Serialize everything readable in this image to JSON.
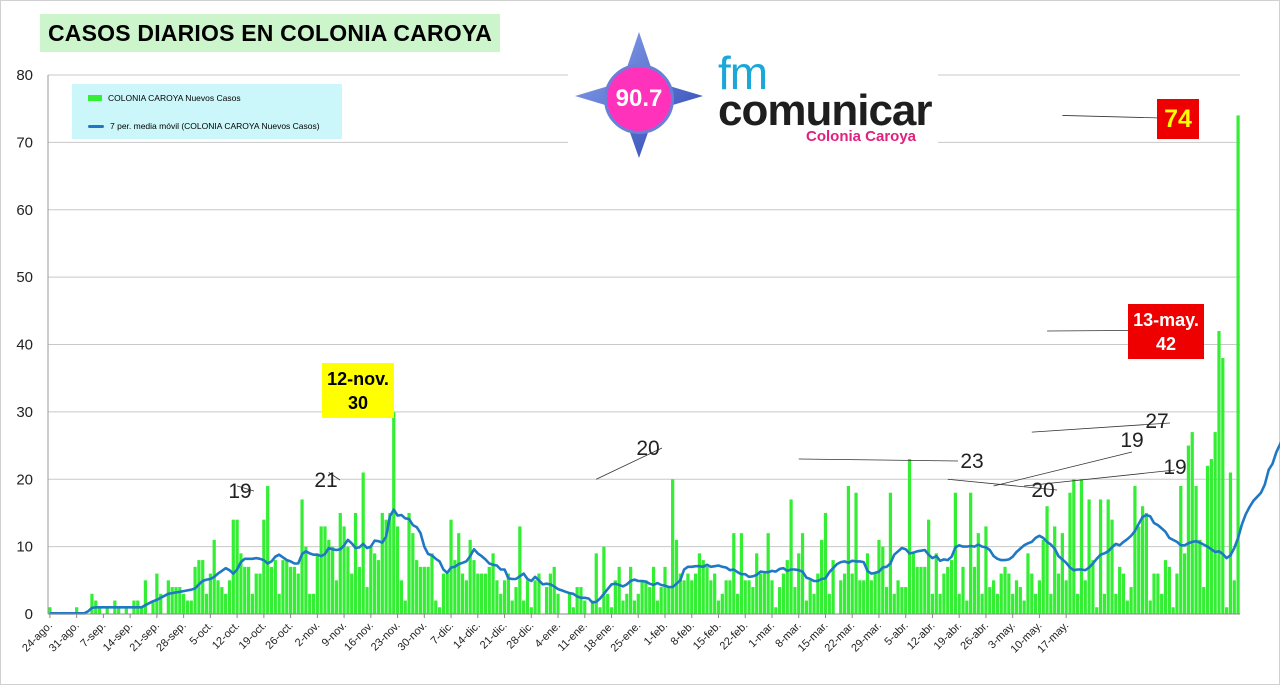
{
  "title": "CASOS DIARIOS EN COLONIA CAROYA",
  "logo": {
    "frequency": "90.7",
    "brand_prefix": "fm",
    "brand_name": "comunicar",
    "city": "Colonia Caroya",
    "icon": "compass-star-icon"
  },
  "legend": {
    "items": [
      {
        "label": "COLONIA CAROYA Nuevos Casos",
        "kind": "bar",
        "color": "#33ee33"
      },
      {
        "label": "7 per. media móvil (COLONIA CAROYA Nuevos Casos)",
        "kind": "line",
        "color": "#1f78c4"
      }
    ]
  },
  "colors": {
    "bars": "#33ee33",
    "moving_average": "#1f78c4",
    "grid": "#c8c8c8",
    "highlight_yellow": "#ffff00",
    "highlight_red": "#ee0000"
  },
  "callouts": {
    "nov": {
      "line1": "12-nov.",
      "line2": "30"
    },
    "may": {
      "line1": "13-may.",
      "line2": "42"
    },
    "max": {
      "value": "74"
    }
  },
  "chart_data": {
    "type": "bar",
    "title": "CASOS DIARIOS EN COLONIA CAROYA",
    "xlabel": "",
    "ylabel": "",
    "ylim": [
      0,
      80
    ],
    "yticks": [
      0,
      10,
      20,
      30,
      40,
      50,
      60,
      70,
      80
    ],
    "grid": true,
    "legend_position": "top-left",
    "x_start": "24-ago.",
    "x_tick_labels": [
      "24-ago.",
      "31-ago.",
      "7-sep.",
      "14-sep.",
      "21-sep.",
      "28-sep.",
      "5-oct.",
      "12-oct.",
      "19-oct.",
      "26-oct.",
      "2-nov.",
      "9-nov.",
      "16-nov.",
      "23-nov.",
      "30-nov.",
      "7-dic.",
      "14-dic.",
      "21-dic.",
      "28-dic.",
      "4-ene.",
      "11-ene.",
      "18-ene.",
      "25-ene.",
      "1-feb.",
      "8-feb.",
      "15-feb.",
      "22-feb.",
      "1-mar.",
      "8-mar.",
      "15-mar.",
      "22-mar.",
      "29-mar.",
      "5-abr.",
      "12-abr.",
      "19-abr.",
      "26-abr.",
      "3-may.",
      "10-may.",
      "17-may."
    ],
    "series": [
      {
        "name": "COLONIA CAROYA Nuevos Casos",
        "type": "bar",
        "values": [
          1,
          0,
          0,
          0,
          0,
          0,
          0,
          1,
          0,
          0,
          0,
          3,
          2,
          1,
          0,
          1,
          0,
          2,
          1,
          0,
          1,
          0,
          2,
          2,
          1,
          5,
          0,
          2,
          6,
          3,
          0,
          5,
          4,
          4,
          4,
          3,
          2,
          2,
          7,
          8,
          8,
          3,
          6,
          11,
          5,
          4,
          3,
          5,
          14,
          14,
          9,
          7,
          7,
          3,
          6,
          6,
          14,
          19,
          7,
          8,
          3,
          8,
          8,
          7,
          7,
          6,
          17,
          10,
          3,
          3,
          9,
          13,
          13,
          11,
          10,
          5,
          15,
          13,
          10,
          6,
          15,
          7,
          21,
          4,
          10,
          9,
          8,
          15,
          14,
          15,
          30,
          13,
          5,
          2,
          15,
          12,
          8,
          7,
          7,
          7,
          9,
          2,
          1,
          6,
          6,
          14,
          8,
          12,
          6,
          5,
          11,
          8,
          6,
          6,
          6,
          7,
          9,
          5,
          3,
          5,
          6,
          2,
          4,
          13,
          2,
          5,
          1,
          5,
          6,
          0,
          4,
          6,
          7,
          3,
          0,
          0,
          3,
          1,
          4,
          4,
          2,
          0,
          2,
          9,
          1,
          10,
          3,
          1,
          5,
          7,
          2,
          3,
          7,
          2,
          3,
          5,
          5,
          4,
          7,
          2,
          4,
          7,
          4,
          20,
          11,
          6,
          5,
          6,
          5,
          6,
          9,
          8,
          7,
          5,
          6,
          2,
          3,
          5,
          5,
          12,
          3,
          12,
          5,
          5,
          4,
          9,
          6,
          6,
          12,
          5,
          1,
          4,
          6,
          8,
          17,
          4,
          9,
          12,
          2,
          5,
          3,
          6,
          11,
          15,
          3,
          8,
          0,
          5,
          6,
          19,
          6,
          18,
          5,
          5,
          9,
          5,
          6,
          11,
          10,
          4,
          18,
          3,
          5,
          4,
          4,
          23,
          9,
          7,
          7,
          7,
          14,
          3,
          9,
          3,
          6,
          7,
          8,
          18,
          3,
          7,
          2,
          18,
          7,
          12,
          3,
          13,
          4,
          5,
          3,
          6,
          7,
          6,
          3,
          5,
          4,
          2,
          9,
          6,
          3,
          5,
          11,
          16,
          3,
          13,
          6,
          12,
          5,
          18,
          20,
          3,
          20,
          5,
          17,
          8,
          1,
          17,
          3,
          17,
          14,
          3,
          7,
          6,
          2,
          4,
          19,
          13,
          16,
          15,
          2,
          6,
          6,
          3,
          8,
          7,
          1,
          6,
          19,
          9,
          25,
          27,
          19,
          11,
          4,
          22,
          23,
          27,
          42,
          38,
          1,
          21,
          5,
          74
        ]
      },
      {
        "name": "7 per. media móvil (COLONIA CAROYA Nuevos Casos)",
        "type": "line",
        "values": [
          0.1,
          0.1,
          0.1,
          0.1,
          0.1,
          0.1,
          0.1,
          0.1,
          0.1,
          0.1,
          0.4,
          0.9,
          1.0,
          1.0,
          1.0,
          1.0,
          1.0,
          1.0,
          1.0,
          1.0,
          1.0,
          1.0,
          1.0,
          1.0,
          1.0,
          1.3,
          1.6,
          1.9,
          2.1,
          2.4,
          2.7,
          3.0,
          3.1,
          3.2,
          3.3,
          3.4,
          3.5,
          3.6,
          3.8,
          4.4,
          4.9,
          5.1,
          5.2,
          5.5,
          6.0,
          6.4,
          6.8,
          6.5,
          6.0,
          6.6,
          7.7,
          8.2,
          8.2,
          8.2,
          8.3,
          8.2,
          8.0,
          7.5,
          7.8,
          8.5,
          8.8,
          8.4,
          8.0,
          7.8,
          7.5,
          7.5,
          8.9,
          9.3,
          9.0,
          8.8,
          8.8,
          8.6,
          8.9,
          9.8,
          9.6,
          9.5,
          9.6,
          10.2,
          11.0,
          10.5,
          9.8,
          9.9,
          10.4,
          9.8,
          10.0,
          10.9,
          10.8,
          10.6,
          11.5,
          14.5,
          15.5,
          14.6,
          14.7,
          14.2,
          14.1,
          13.2,
          12.9,
          12.0,
          10.0,
          8.9,
          8.7,
          8.2,
          7.8,
          6.6,
          6.1,
          6.9,
          7.0,
          7.4,
          7.6,
          7.8,
          8.6,
          9.6,
          9.0,
          8.6,
          8.1,
          7.5,
          7.3,
          7.2,
          6.6,
          6.6,
          5.3,
          5.2,
          5.2,
          5.6,
          6.0,
          5.2,
          4.9,
          5.5,
          5.0,
          4.4,
          4.5,
          4.4,
          4.1,
          3.7,
          3.5,
          3.3,
          3.1,
          3.0,
          2.6,
          2.4,
          2.4,
          2.3,
          1.7,
          1.8,
          2.3,
          3.0,
          3.7,
          4.4,
          4.5,
          4.3,
          4.1,
          4.4,
          4.9,
          5.1,
          4.9,
          4.9,
          4.8,
          4.5,
          4.3,
          4.6,
          4.3,
          4.2,
          4.0,
          4.0,
          4.5,
          5.0,
          6.6,
          7.0,
          7.0,
          7.1,
          7.1,
          7.0,
          7.3,
          7.0,
          7.1,
          7.2,
          7.0,
          6.9,
          6.5,
          6.6,
          6.2,
          5.9,
          5.9,
          5.5,
          5.6,
          5.8,
          6.3,
          6.2,
          6.2,
          6.4,
          6.3,
          6.7,
          6.8,
          6.4,
          6.6,
          6.6,
          6.5,
          6.3,
          5.4,
          5.2,
          4.9,
          4.9,
          5.2,
          5.3,
          6.2,
          6.8,
          7.4,
          7.7,
          7.8,
          7.6,
          7.9,
          7.8,
          7.8,
          7.7,
          6.4,
          6.0,
          6.1,
          6.3,
          6.9,
          7.0,
          7.5,
          8.8,
          9.3,
          9.8,
          9.6,
          9.0,
          9.1,
          9.3,
          9.4,
          9.5,
          8.8,
          8.3,
          8.6,
          7.9,
          8.1,
          8.0,
          8.5,
          9.9,
          10.2,
          10.0,
          10.0,
          10.1,
          10.0,
          10.3,
          10.0,
          9.9,
          9.5,
          8.6,
          8.2,
          8.0,
          8.0,
          8.1,
          8.5,
          9.2,
          9.7,
          10.2,
          10.5,
          10.7,
          11.3,
          11.6,
          11.3,
          10.7,
          10.3,
          9.7,
          8.6,
          8.1,
          7.6,
          6.9,
          6.5,
          6.6,
          6.6,
          6.5,
          6.9,
          7.5,
          8.2,
          8.8,
          9.0,
          9.3,
          9.9,
          10.4,
          10.2,
          10.7,
          11.1,
          11.6,
          12.3,
          13.4,
          14.4,
          14.7,
          14.5,
          13.5,
          13.2,
          12.7,
          12.2,
          11.3,
          11.0,
          10.7,
          10.2,
          10.2,
          10.5,
          10.7,
          10.8,
          10.6,
          10.3,
          10.0,
          9.6,
          9.2,
          9.3,
          8.9,
          8.3,
          8.7,
          9.8,
          11.3,
          13.3,
          14.8,
          15.9,
          16.8,
          17.4,
          18.0,
          19.2,
          21.4,
          22.3,
          24.0,
          25.2,
          26.4,
          28.9,
          33.1
        ]
      }
    ],
    "annotations": [
      {
        "label": "19",
        "date": "12-oct.",
        "value": 19
      },
      {
        "label": "21",
        "date": "5-nov.",
        "value": 21
      },
      {
        "label": "12-nov. 30",
        "date": "12-nov.",
        "value": 30
      },
      {
        "label": "20",
        "date": "14-ene.",
        "value": 20
      },
      {
        "label": "23",
        "date": "8-mar.",
        "value": 23
      },
      {
        "label": "20",
        "date": "16-abr.",
        "value": 20
      },
      {
        "label": "19",
        "date": "28-abr.",
        "value": 19
      },
      {
        "label": "19",
        "date": "6-may.",
        "value": 19
      },
      {
        "label": "27",
        "date": "8-may.",
        "value": 27
      },
      {
        "label": "13-may. 42",
        "date": "13-may.",
        "value": 42
      },
      {
        "label": "74",
        "date": "17-may.",
        "value": 74
      }
    ]
  }
}
